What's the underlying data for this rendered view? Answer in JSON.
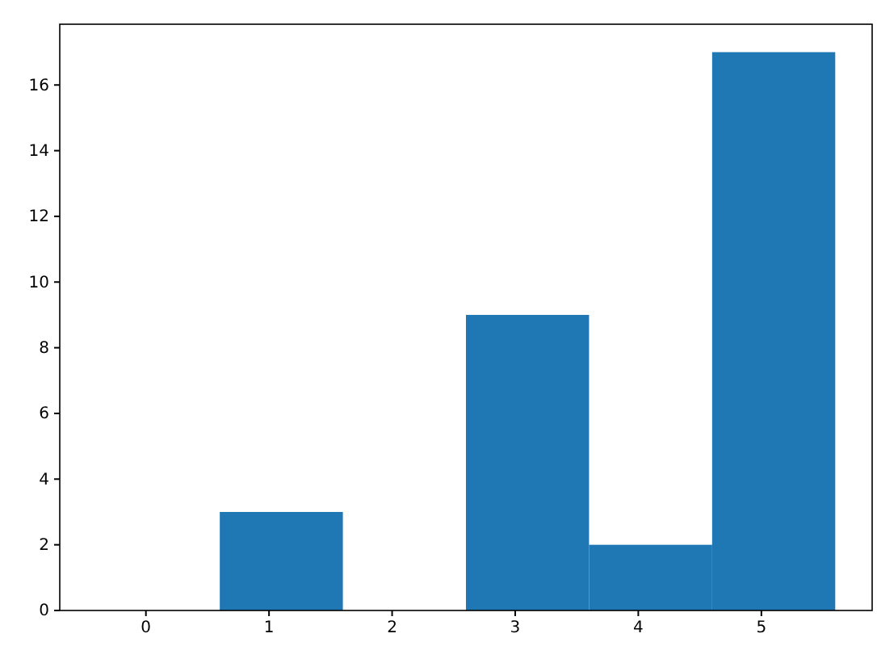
{
  "chart_data": {
    "type": "histogram",
    "bins": [
      -0.4,
      0.6,
      1.6,
      2.6,
      3.6,
      4.6,
      5.6
    ],
    "values": [
      0,
      3,
      0,
      9,
      2,
      17
    ],
    "color": "#1f77b4",
    "xlim": [
      -0.7,
      5.9
    ],
    "xticks": [
      0,
      1,
      2,
      3,
      4,
      5
    ],
    "ylim": [
      0,
      17.85
    ],
    "yticks": [
      0,
      2,
      4,
      6,
      8,
      10,
      12,
      14,
      16
    ],
    "grid": false
  }
}
